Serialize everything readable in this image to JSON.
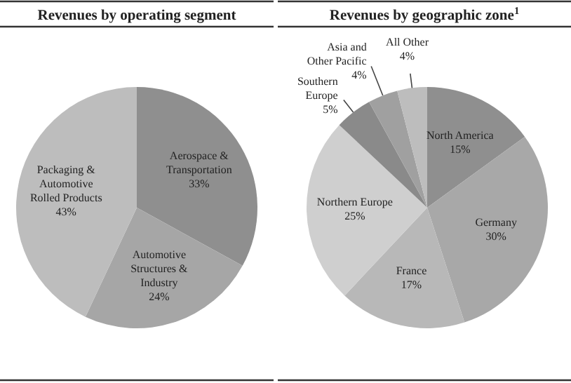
{
  "chart_data": [
    {
      "type": "pie",
      "title": "Revenues by operating segment",
      "categories": [
        "Aerospace &\nTransportation",
        "Automotive\nStructures &\nIndustry",
        "Packaging &\nAutomotive\nRolled Products"
      ],
      "values": [
        33,
        24,
        43
      ],
      "value_labels": [
        "33%",
        "24%",
        "43%"
      ],
      "colors": [
        "#8f8f8f",
        "#a6a6a6",
        "#bdbdbd"
      ]
    },
    {
      "type": "pie",
      "title": "Revenues by geographic zone$^{1}$",
      "categories": [
        "North America",
        "Germany",
        "France",
        "Northern Europe",
        "Southern\nEurope",
        "Asia and\nOther Pacific",
        "All Other"
      ],
      "values": [
        15,
        30,
        17,
        25,
        5,
        4,
        4
      ],
      "value_labels": [
        "15%",
        "30%",
        "17%",
        "25%",
        "5%",
        "4%",
        "4%"
      ],
      "colors": [
        "#8f8f8f",
        "#a8a8a8",
        "#b8b8b8",
        "#cfcfcf",
        "#8a8a8a",
        "#a0a0a0",
        "#bdbdbd"
      ]
    }
  ]
}
